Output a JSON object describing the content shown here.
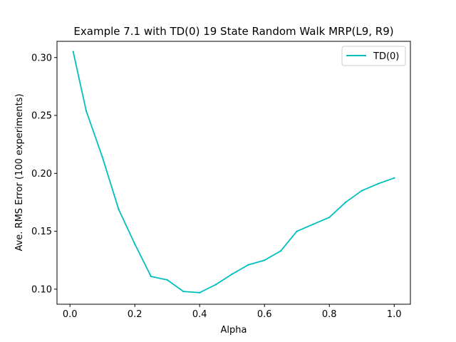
{
  "chart_data": {
    "type": "line",
    "title": "Example 7.1 with TD(0) 19 State Random Walk MRP(L9, R9)",
    "xlabel": "Alpha",
    "ylabel": "Ave. RMS Error (100 experiments)",
    "xlim": [
      -0.04,
      1.05
    ],
    "ylim": [
      0.087,
      0.314
    ],
    "xticks": [
      0.0,
      0.2,
      0.4,
      0.6,
      0.8,
      1.0
    ],
    "xtick_labels": [
      "0.0",
      "0.2",
      "0.4",
      "0.6",
      "0.8",
      "1.0"
    ],
    "yticks": [
      0.1,
      0.15,
      0.2,
      0.25,
      0.3
    ],
    "ytick_labels": [
      "0.10",
      "0.15",
      "0.20",
      "0.25",
      "0.30"
    ],
    "grid": false,
    "legend_position": "top-right",
    "series": [
      {
        "name": "TD(0)",
        "color": "#00bfbf",
        "x": [
          0.01,
          0.05,
          0.1,
          0.15,
          0.2,
          0.25,
          0.3,
          0.35,
          0.4,
          0.45,
          0.5,
          0.55,
          0.6,
          0.65,
          0.7,
          0.75,
          0.8,
          0.85,
          0.9,
          0.95,
          1.0
        ],
        "y": [
          0.305,
          0.254,
          0.214,
          0.169,
          0.139,
          0.111,
          0.108,
          0.098,
          0.097,
          0.104,
          0.113,
          0.121,
          0.125,
          0.133,
          0.15,
          0.156,
          0.162,
          0.175,
          0.185,
          0.191,
          0.196
        ]
      }
    ]
  }
}
